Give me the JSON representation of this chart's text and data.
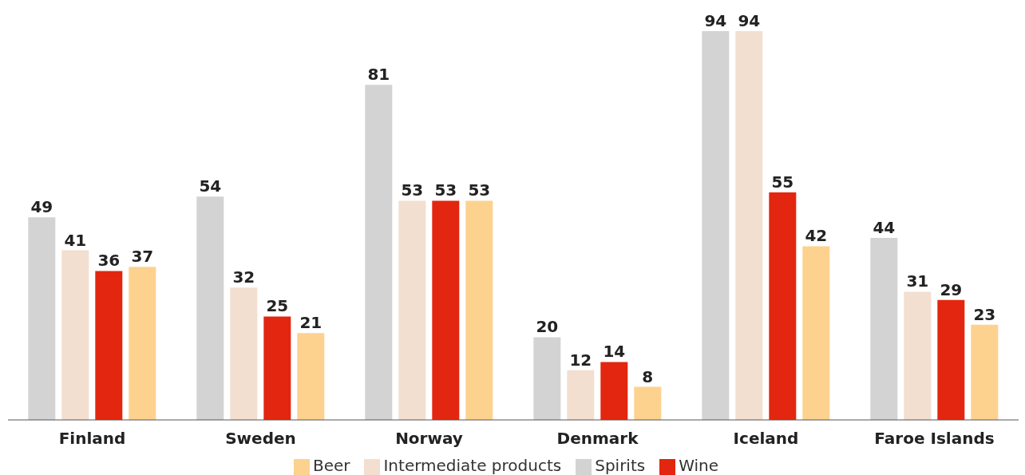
{
  "chart_data": {
    "type": "bar",
    "categories": [
      "Finland",
      "Sweden",
      "Norway",
      "Denmark",
      "Iceland",
      "Faroe Islands"
    ],
    "series": [
      {
        "name": "Spirits",
        "color": "#d3d3d3",
        "values": [
          49,
          54,
          81,
          20,
          94,
          44
        ]
      },
      {
        "name": "Intermediate products",
        "color": "#f2dfd0",
        "values": [
          41,
          32,
          53,
          12,
          94,
          31
        ]
      },
      {
        "name": "Wine",
        "color": "#e3260f",
        "values": [
          36,
          25,
          53,
          14,
          55,
          29
        ]
      },
      {
        "name": "Beer",
        "color": "#fdd28f",
        "values": [
          37,
          21,
          53,
          8,
          42,
          23
        ]
      }
    ],
    "data_labels": true,
    "legend": "bottom",
    "grid": false
  }
}
